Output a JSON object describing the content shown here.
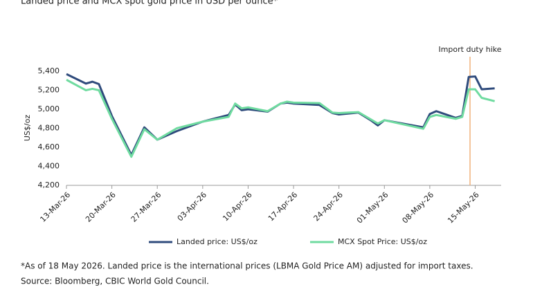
{
  "chart_data": {
    "type": "line",
    "title": "Landed price and MCX spot gold price in USD per ounce*",
    "ylabel": "US$/oz",
    "annotation": {
      "text": "Import duty hike",
      "x": 62.2,
      "color": "#f0b27a"
    },
    "xlim": [
      0,
      67
    ],
    "xticks": [
      {
        "value": 0,
        "label": "13-Mar-26"
      },
      {
        "value": 7,
        "label": "20-Mar-26"
      },
      {
        "value": 14,
        "label": "27-Mar-26"
      },
      {
        "value": 21,
        "label": "03-Apr-26"
      },
      {
        "value": 28,
        "label": "10-Apr-26"
      },
      {
        "value": 35,
        "label": "17-Apr-26"
      },
      {
        "value": 42,
        "label": "24-Apr-26"
      },
      {
        "value": 49,
        "label": "01-May-26"
      },
      {
        "value": 56,
        "label": "08-May-26"
      },
      {
        "value": 63,
        "label": "15-May-26"
      }
    ],
    "ylim": [
      4200,
      5400
    ],
    "yticks": [
      {
        "value": 4200,
        "label": "4,200"
      },
      {
        "value": 4400,
        "label": "4,400"
      },
      {
        "value": 4600,
        "label": "4,600"
      },
      {
        "value": 4800,
        "label": "4,800"
      },
      {
        "value": 5000,
        "label": "5,000"
      },
      {
        "value": 5200,
        "label": "5,200"
      },
      {
        "value": 5400,
        "label": "5,400"
      }
    ],
    "x": [
      0,
      3,
      4,
      5,
      7,
      10,
      12,
      14,
      17,
      21,
      25,
      26,
      27,
      28,
      31,
      33,
      34,
      35,
      39,
      41,
      42,
      45,
      47,
      48,
      49,
      55,
      56,
      57,
      60,
      61,
      62,
      63,
      64,
      66
    ],
    "series": [
      {
        "name": "Landed price: US$/oz",
        "color": "#2f4b7c",
        "values": [
          5370,
          5270,
          5290,
          5265,
          4930,
          4520,
          4810,
          4680,
          4770,
          4870,
          4940,
          5050,
          4990,
          5000,
          4975,
          5060,
          5070,
          5060,
          5045,
          4960,
          4945,
          4965,
          4880,
          4830,
          4885,
          4810,
          4950,
          4980,
          4910,
          4930,
          5340,
          5345,
          5210,
          5220
        ]
      },
      {
        "name": "MCX Spot Price: US$/oz",
        "color": "#6fdba0",
        "values": [
          5310,
          5200,
          5215,
          5200,
          4900,
          4500,
          4790,
          4680,
          4800,
          4870,
          4920,
          5060,
          5010,
          5020,
          4980,
          5060,
          5080,
          5070,
          5065,
          4965,
          4960,
          4970,
          4890,
          4850,
          4885,
          4795,
          4920,
          4940,
          4900,
          4920,
          5210,
          5210,
          5120,
          5085
        ]
      }
    ],
    "footnotes": [
      "*As of 18 May 2026. Landed price is the international prices (LBMA Gold Price AM) adjusted for import taxes.",
      "Source: Bloomberg, CBIC World Gold Council."
    ]
  }
}
